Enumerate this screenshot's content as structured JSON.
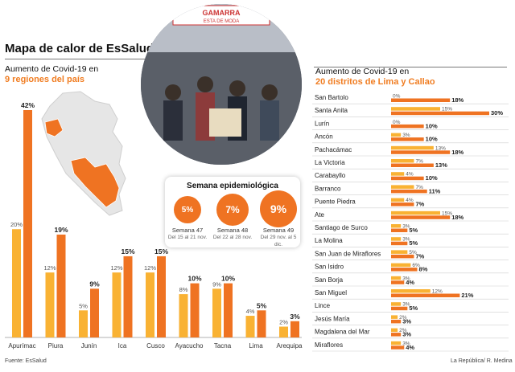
{
  "header": {
    "title": "Mapa de calor de EsSalud",
    "left_subtitle_1": "Aumento de Covid-19 en",
    "left_subtitle_2": "9 regiones del país",
    "right_subtitle_1": "Aumento de Covid-19 en",
    "right_subtitle_2": "20 distritos de Lima y Callao"
  },
  "photo": {
    "sign_line_1": "GAMARRA",
    "sign_line_2": "ESTA DE MODA"
  },
  "semana": {
    "title": "Semana epidemiológica",
    "weeks": [
      {
        "pct": "5%",
        "label": "Semana 47",
        "range": "Del 15 al 21 nov."
      },
      {
        "pct": "7%",
        "label": "Semana 48",
        "range": "Del 22 al 28 nov."
      },
      {
        "pct": "9%",
        "label": "Semana 49",
        "range": "Del 29 nov. al 5 dic."
      }
    ]
  },
  "footer": {
    "source": "Fuente: EsSalud",
    "credit": "La República/ R. Medina"
  },
  "colors": {
    "light": "#f9b233",
    "dark": "#ef7322",
    "accent_text": "#f07d22"
  },
  "chart_data": [
    {
      "type": "bar",
      "categories": [
        "Apurímac",
        "Piura",
        "Junín",
        "Ica",
        "Cusco",
        "Ayacucho",
        "Tacna",
        "Lima",
        "Arequipa"
      ],
      "series": [
        {
          "values": [
            20,
            12,
            5,
            12,
            12,
            8,
            9,
            4,
            2
          ],
          "labels": [
            "20%",
            "12%",
            "5%",
            "12%",
            "12%",
            "8%",
            "9%",
            "4%",
            "2%"
          ]
        },
        {
          "values": [
            42,
            19,
            9,
            15,
            15,
            10,
            10,
            5,
            3
          ],
          "labels": [
            "42%",
            "19%",
            "9%",
            "15%",
            "15%",
            "10%",
            "10%",
            "5%",
            "3%"
          ]
        }
      ],
      "ylim": [
        0,
        42
      ]
    },
    {
      "type": "bar",
      "orientation": "horizontal",
      "categories": [
        "San Bartolo",
        "Santa Anita",
        "Lurín",
        "Ancón",
        "Pachacámac",
        "La Victoria",
        "Carabayllo",
        "Barranco",
        "Puente Piedra",
        "Ate",
        "Santiago de Surco",
        "La Molina",
        "San Juan de Miraflores",
        "San Isidro",
        "San Borja",
        "San Miguel",
        "Lince",
        "Jesús María",
        "Magdalena del Mar",
        "Miraflores"
      ],
      "series": [
        {
          "values": [
            0,
            15,
            0,
            3,
            13,
            7,
            4,
            7,
            4,
            15,
            3,
            3,
            5,
            6,
            3,
            12,
            3,
            2,
            2,
            3
          ],
          "labels": [
            "0%",
            "15%",
            "0%",
            "3%",
            "13%",
            "7%",
            "4%",
            "7%",
            "4%",
            "15%",
            "3%",
            "3%",
            "5%",
            "6%",
            "3%",
            "12%",
            "3%",
            "2%",
            "2%",
            "3%"
          ]
        },
        {
          "values": [
            18,
            30,
            10,
            10,
            18,
            13,
            10,
            11,
            7,
            18,
            5,
            5,
            7,
            8,
            4,
            21,
            5,
            3,
            3,
            4
          ],
          "labels": [
            "18%",
            "30%",
            "10%",
            "10%",
            "18%",
            "13%",
            "10%",
            "11%",
            "7%",
            "18%",
            "5%",
            "5%",
            "7%",
            "8%",
            "4%",
            "21%",
            "5%",
            "3%",
            "3%",
            "4%"
          ]
        }
      ],
      "xlim": [
        0,
        30
      ]
    }
  ]
}
